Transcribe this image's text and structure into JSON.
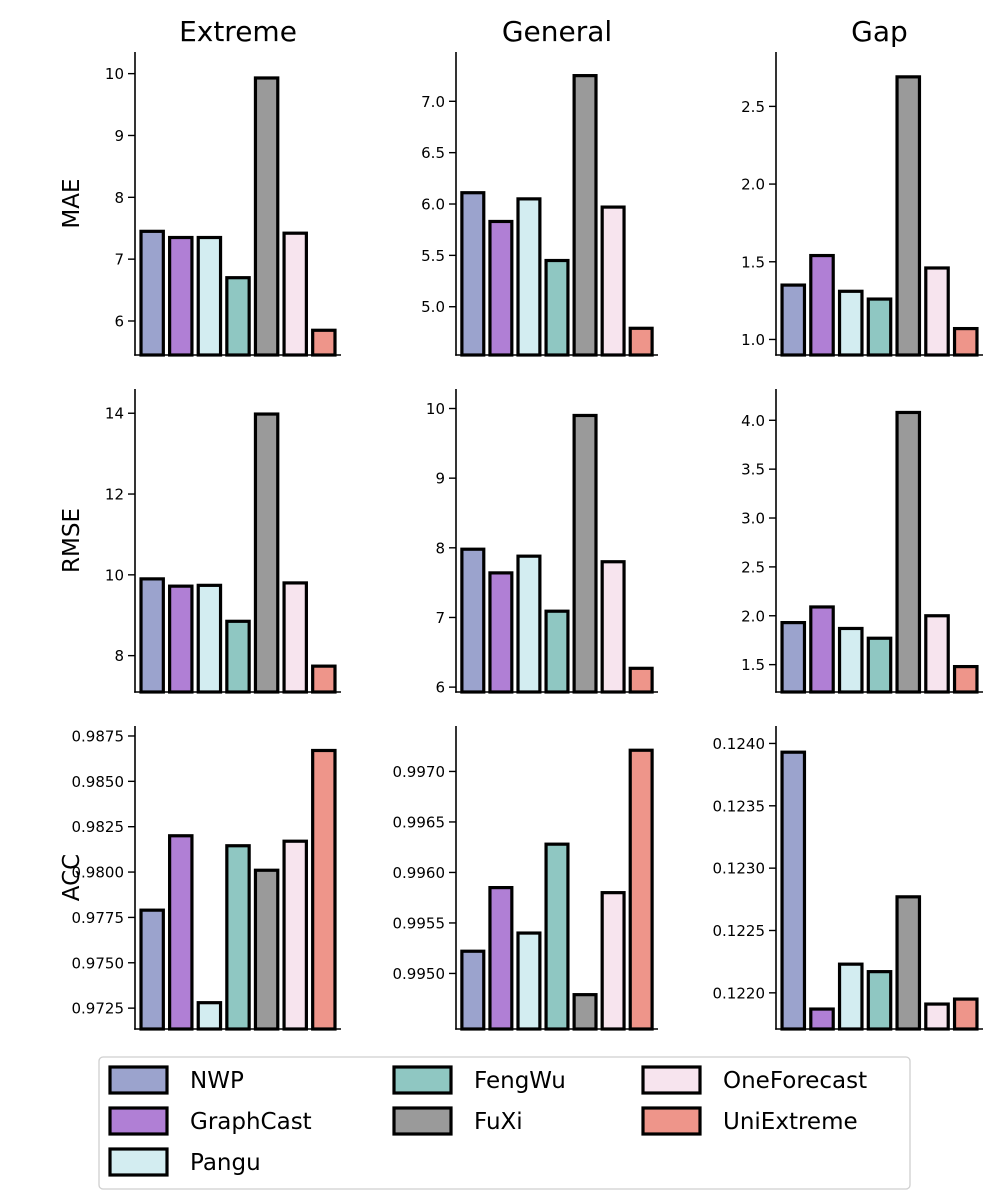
{
  "legend": [
    "NWP",
    "GraphCast",
    "Pangu",
    "FengWu",
    "FuXi",
    "OneForecast",
    "UniExtreme"
  ],
  "colors": [
    "#9ba3cd",
    "#b07fd5",
    "#d3edf1",
    "#8fc7c2",
    "#9a9a9a",
    "#f7e4ee",
    "#ee958a"
  ],
  "chart_data": [
    {
      "type": "bar",
      "row": "MAE",
      "column": "Extreme",
      "title": "Extreme",
      "ylabel": "MAE",
      "ylim": [
        5.45,
        10.35
      ],
      "ticks": [
        6,
        7,
        8,
        9,
        10
      ],
      "tick_labels": [
        "6",
        "7",
        "8",
        "9",
        "10"
      ],
      "values": [
        7.45,
        7.35,
        7.35,
        6.7,
        9.93,
        7.42,
        5.85
      ]
    },
    {
      "type": "bar",
      "row": "MAE",
      "column": "General",
      "title": "General",
      "ylabel": "",
      "ylim": [
        4.53,
        7.48
      ],
      "ticks": [
        5.0,
        5.5,
        6.0,
        6.5,
        7.0
      ],
      "tick_labels": [
        "5.0",
        "5.5",
        "6.0",
        "6.5",
        "7.0"
      ],
      "values": [
        6.11,
        5.83,
        6.05,
        5.45,
        7.25,
        5.97,
        4.79
      ]
    },
    {
      "type": "bar",
      "row": "MAE",
      "column": "Gap",
      "title": "Gap",
      "ylabel": "",
      "ylim": [
        0.9,
        2.85
      ],
      "ticks": [
        1.0,
        1.5,
        2.0,
        2.5
      ],
      "tick_labels": [
        "1.0",
        "1.5",
        "2.0",
        "2.5"
      ],
      "values": [
        1.35,
        1.54,
        1.31,
        1.26,
        2.69,
        1.46,
        1.07
      ]
    },
    {
      "type": "bar",
      "row": "RMSE",
      "column": "Extreme",
      "title": "",
      "ylabel": "RMSE",
      "ylim": [
        7.1,
        14.6
      ],
      "ticks": [
        8,
        10,
        12,
        14
      ],
      "tick_labels": [
        "8",
        "10",
        "12",
        "14"
      ],
      "values": [
        9.9,
        9.72,
        9.74,
        8.85,
        13.98,
        9.8,
        7.74
      ]
    },
    {
      "type": "bar",
      "row": "RMSE",
      "column": "General",
      "title": "",
      "ylabel": "",
      "ylim": [
        5.93,
        10.28
      ],
      "ticks": [
        6,
        7,
        8,
        9,
        10
      ],
      "tick_labels": [
        "6",
        "7",
        "8",
        "9",
        "10"
      ],
      "values": [
        7.98,
        7.64,
        7.88,
        7.09,
        9.9,
        7.8,
        6.27
      ]
    },
    {
      "type": "bar",
      "row": "RMSE",
      "column": "Gap",
      "title": "",
      "ylabel": "",
      "ylim": [
        1.22,
        4.32
      ],
      "ticks": [
        1.5,
        2.0,
        2.5,
        3.0,
        3.5,
        4.0
      ],
      "tick_labels": [
        "1.5",
        "2.0",
        "2.5",
        "3.0",
        "3.5",
        "4.0"
      ],
      "values": [
        1.93,
        2.09,
        1.87,
        1.77,
        4.08,
        2.0,
        1.48
      ]
    },
    {
      "type": "bar",
      "row": "ACC",
      "column": "Extreme",
      "title": "",
      "ylabel": "ACC",
      "ylim": [
        0.97135,
        0.98805
      ],
      "ticks": [
        0.9725,
        0.975,
        0.9775,
        0.98,
        0.9825,
        0.985,
        0.9875
      ],
      "tick_labels": [
        "0.9725",
        "0.9750",
        "0.9775",
        "0.9800",
        "0.9825",
        "0.9850",
        "0.9875"
      ],
      "values": [
        0.9779,
        0.982,
        0.9728,
        0.98145,
        0.9801,
        0.9817,
        0.9867
      ]
    },
    {
      "type": "bar",
      "row": "ACC",
      "column": "General",
      "title": "",
      "ylabel": "",
      "ylim": [
        0.99445,
        0.99745
      ],
      "ticks": [
        0.995,
        0.9955,
        0.996,
        0.9965,
        0.997
      ],
      "tick_labels": [
        "0.9950",
        "0.9955",
        "0.9960",
        "0.9965",
        "0.9970"
      ],
      "values": [
        0.99522,
        0.99585,
        0.9954,
        0.99628,
        0.99479,
        0.9958,
        0.99721
      ]
    },
    {
      "type": "bar",
      "row": "ACC",
      "column": "Gap",
      "title": "",
      "ylabel": "",
      "ylim": [
        0.12171,
        0.12414
      ],
      "ticks": [
        0.122,
        0.1225,
        0.123,
        0.1235,
        0.124
      ],
      "tick_labels": [
        "0.1220",
        "0.1225",
        "0.1230",
        "0.1235",
        "0.1240"
      ],
      "values": [
        0.12393,
        0.12187,
        0.12223,
        0.12217,
        0.12277,
        0.12191,
        0.12195
      ]
    }
  ]
}
